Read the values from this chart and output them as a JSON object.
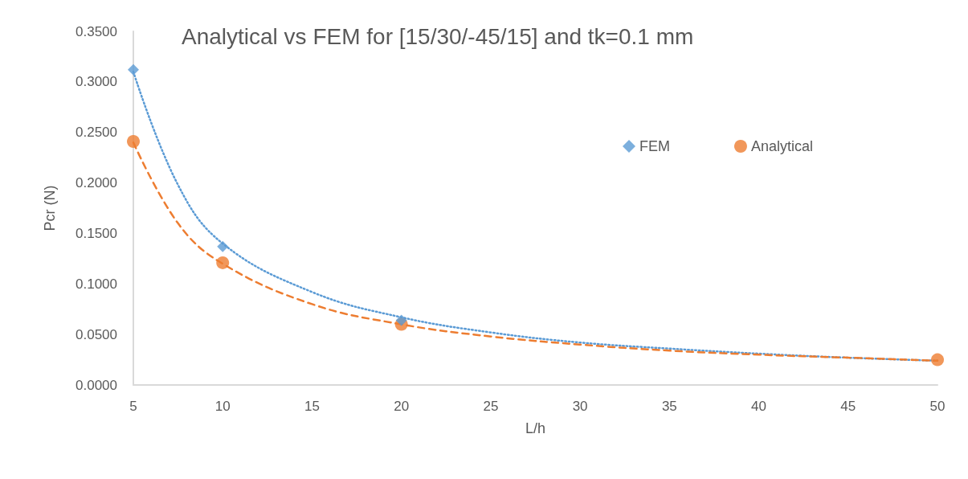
{
  "chart_data": {
    "type": "scatter",
    "title": "Analytical vs FEM for [15/30/-45/15] and tk=0.1 mm",
    "xlabel": "L/h",
    "ylabel": "Pcr (N)",
    "xlim": [
      5,
      50
    ],
    "xticks": [
      5,
      10,
      15,
      20,
      25,
      30,
      35,
      40,
      45,
      50
    ],
    "ylim": [
      0,
      0.35
    ],
    "yticks": [
      {
        "value": 0,
        "label": "0.0000"
      },
      {
        "value": 0.05,
        "label": "0.0500"
      },
      {
        "value": 0.1,
        "label": "0.1000"
      },
      {
        "value": 0.15,
        "label": "0.1500"
      },
      {
        "value": 0.2,
        "label": "0.2000"
      },
      {
        "value": 0.25,
        "label": "0.2500"
      },
      {
        "value": 0.3,
        "label": "0.3000"
      },
      {
        "value": 0.35,
        "label": "0.3500"
      }
    ],
    "grid": false,
    "legend": "top right",
    "series": [
      {
        "type": "line",
        "color": "#5b9bd5",
        "line_style": "dotted",
        "marker": "none",
        "x": [
          5,
          7.5,
          10,
          15,
          20,
          25,
          30,
          35,
          40,
          45,
          50
        ],
        "values": [
          0.31,
          0.198,
          0.14,
          0.092,
          0.067,
          0.052,
          0.042,
          0.036,
          0.031,
          0.027,
          0.024
        ]
      },
      {
        "type": "line",
        "color": "#ed7d31",
        "line_style": "dashed",
        "marker": "none",
        "x": [
          5,
          7.5,
          10,
          15,
          20,
          25,
          30,
          35,
          40,
          45,
          50
        ],
        "values": [
          0.24,
          0.16,
          0.12,
          0.08,
          0.06,
          0.048,
          0.04,
          0.034,
          0.03,
          0.027,
          0.024
        ]
      },
      {
        "name": "FEM",
        "color": "#5b9bd5",
        "marker": "diamond",
        "x": [
          5,
          10,
          20
        ],
        "values": [
          0.312,
          0.137,
          0.064
        ]
      },
      {
        "name": "Analytical",
        "color": "#ed7d31",
        "marker": "circle",
        "x": [
          5,
          10,
          20,
          50
        ],
        "values": [
          0.241,
          0.121,
          0.06,
          0.025
        ]
      }
    ]
  }
}
